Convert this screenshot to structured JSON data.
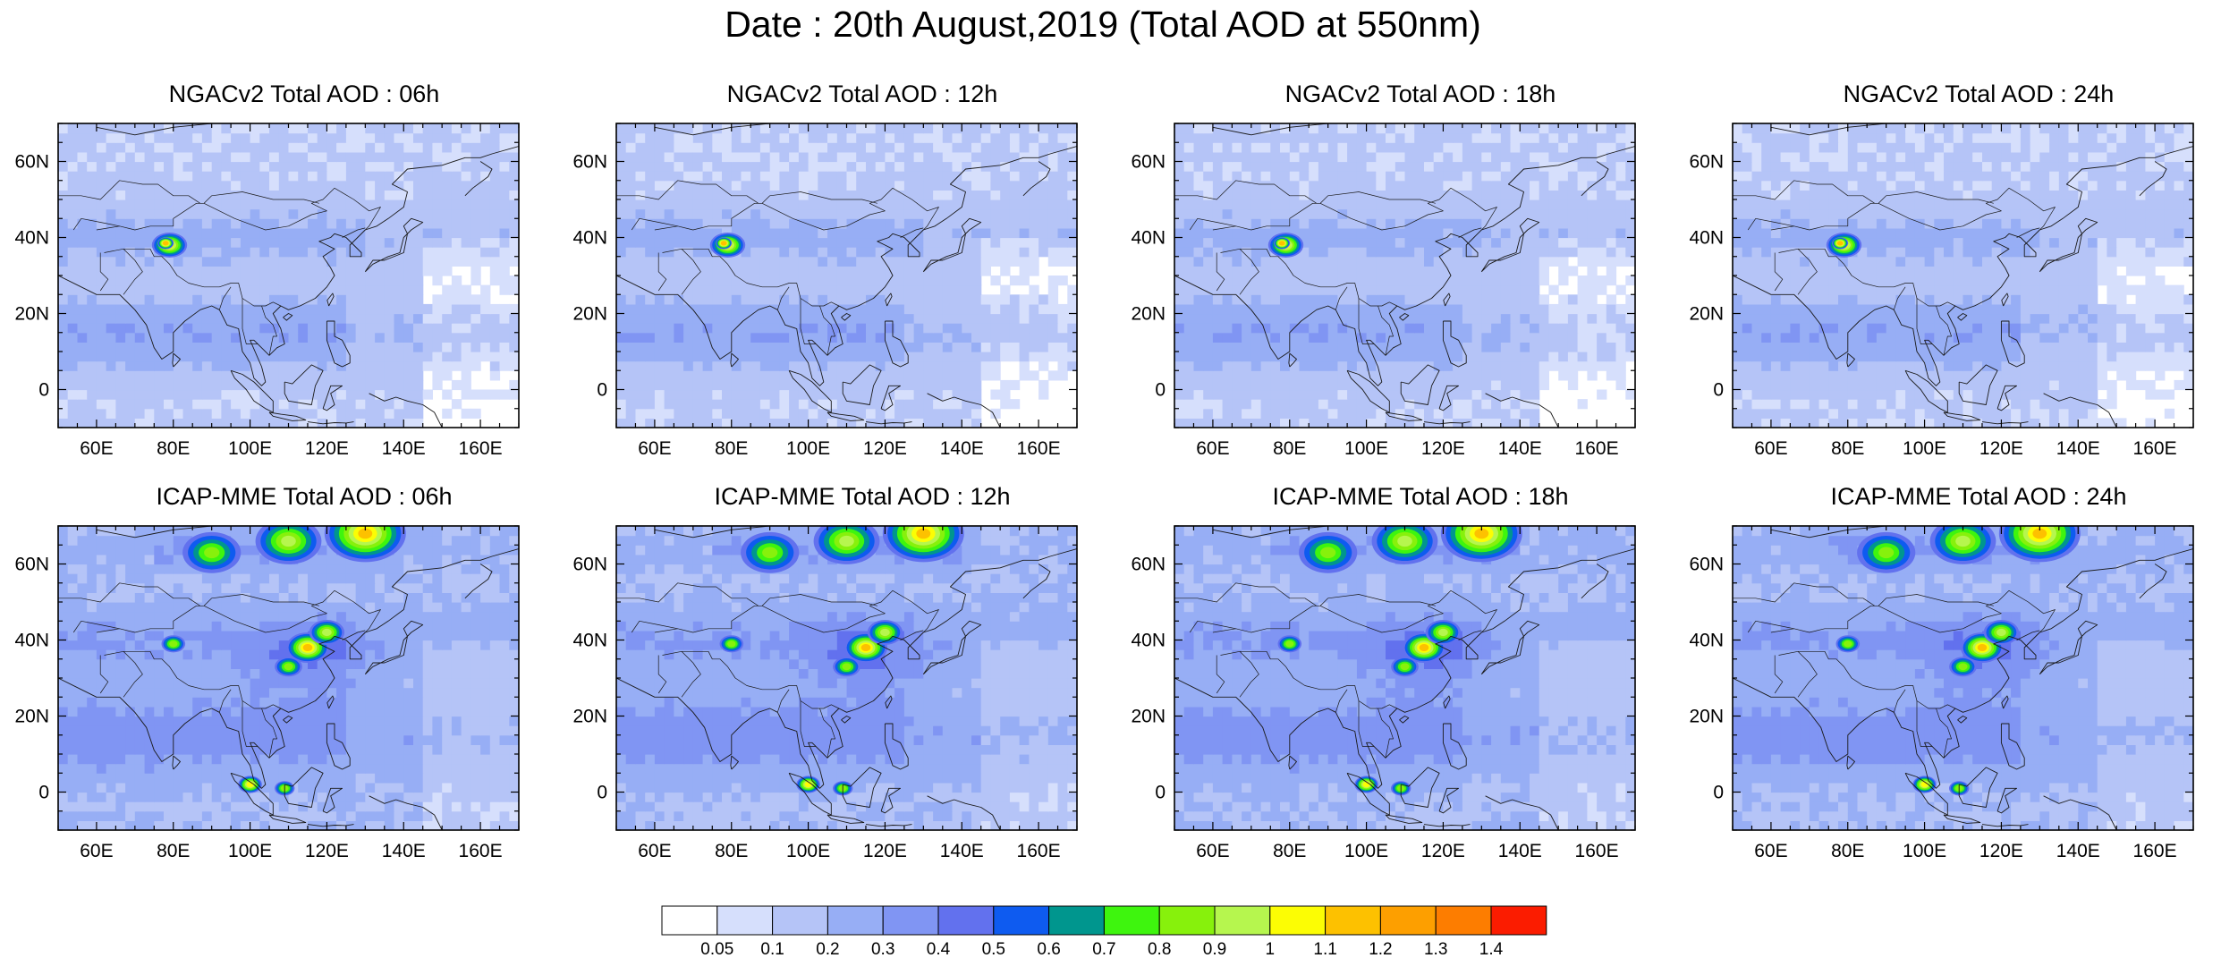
{
  "title": "Date : 20th August,2019 (Total AOD at 550nm)",
  "map_extent": {
    "lon_min": 50,
    "lon_max": 170,
    "lat_min": -10,
    "lat_max": 70
  },
  "lon_ticks": [
    60,
    80,
    100,
    120,
    140,
    160
  ],
  "lon_tick_labels": [
    "60E",
    "80E",
    "100E",
    "120E",
    "140E",
    "160E"
  ],
  "lat_ticks": [
    0,
    20,
    40,
    60
  ],
  "lat_tick_labels": [
    "0",
    "20N",
    "40N",
    "60N"
  ],
  "panels": [
    {
      "title": "NGACv2 Total AOD : 06h",
      "model": "NGACv2",
      "hour": "06h"
    },
    {
      "title": "NGACv2 Total AOD : 12h",
      "model": "NGACv2",
      "hour": "12h"
    },
    {
      "title": "NGACv2 Total AOD : 18h",
      "model": "NGACv2",
      "hour": "18h"
    },
    {
      "title": "NGACv2 Total AOD : 24h",
      "model": "NGACv2",
      "hour": "24h"
    },
    {
      "title": "ICAP-MME Total AOD : 06h",
      "model": "ICAP-MME",
      "hour": "06h"
    },
    {
      "title": "ICAP-MME Total AOD : 12h",
      "model": "ICAP-MME",
      "hour": "12h"
    },
    {
      "title": "ICAP-MME Total AOD : 18h",
      "model": "ICAP-MME",
      "hour": "18h"
    },
    {
      "title": "ICAP-MME Total AOD : 24h",
      "model": "ICAP-MME",
      "hour": "24h"
    }
  ],
  "colorbar": {
    "labels": [
      "0.05",
      "0.1",
      "0.2",
      "0.3",
      "0.4",
      "0.5",
      "0.6",
      "0.7",
      "0.8",
      "0.9",
      "1",
      "1.1",
      "1.2",
      "1.3",
      "1.4"
    ],
    "colors": [
      "#ffffff",
      "#d6dffc",
      "#b5c4f7",
      "#97aef5",
      "#8095f3",
      "#6271ee",
      "#0e5bf0",
      "#00968e",
      "#3ef50e",
      "#87f10c",
      "#b6f64e",
      "#fcfd04",
      "#fdc100",
      "#fd9f00",
      "#fd7d00",
      "#fb1c00"
    ]
  },
  "hotspots": {
    "NGACv2": [
      {
        "lon": 79,
        "lat": 38,
        "r": 4,
        "level": 11
      },
      {
        "lon": 78,
        "lat": 38.5,
        "r": 1.5,
        "level": 12
      }
    ],
    "ICAP-MME": [
      {
        "lon": 90,
        "lat": 63,
        "r": 7,
        "level": 9
      },
      {
        "lon": 110,
        "lat": 66,
        "r": 8,
        "level": 10
      },
      {
        "lon": 130,
        "lat": 68,
        "r": 10,
        "level": 12
      },
      {
        "lon": 115,
        "lat": 38,
        "r": 5,
        "level": 12
      },
      {
        "lon": 120,
        "lat": 42,
        "r": 4,
        "level": 10
      },
      {
        "lon": 110,
        "lat": 33,
        "r": 3,
        "level": 9
      },
      {
        "lon": 80,
        "lat": 39,
        "r": 2.5,
        "level": 9
      },
      {
        "lon": 100,
        "lat": 2,
        "r": 2.5,
        "level": 11
      },
      {
        "lon": 109,
        "lat": 1,
        "r": 2,
        "level": 9
      }
    ]
  }
}
